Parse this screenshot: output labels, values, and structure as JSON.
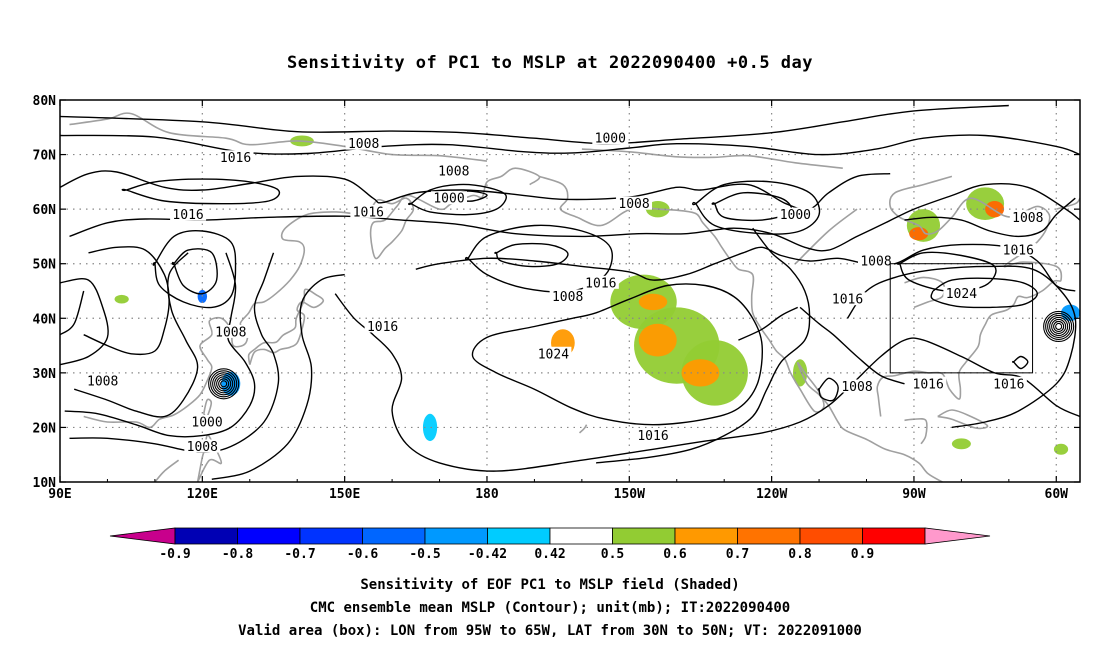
{
  "title": "Sensitivity of PC1 to MSLP at 2022090400 +0.5 day",
  "map": {
    "lon_range": [
      90,
      305
    ],
    "lat_range": [
      10,
      80
    ],
    "lat_ticks": [
      "10N",
      "20N",
      "30N",
      "40N",
      "50N",
      "60N",
      "70N",
      "80N"
    ],
    "lon_ticks": [
      "90E",
      "120E",
      "150E",
      "180",
      "150W",
      "120W",
      "90W",
      "60W"
    ],
    "grid": "dotted",
    "valid_box": {
      "lon": [
        265,
        295
      ],
      "lat": [
        30,
        50
      ]
    },
    "contour_labels": [
      {
        "text": "1016",
        "lon": 127,
        "lat": 69.5
      },
      {
        "text": "1008",
        "lon": 154,
        "lat": 72
      },
      {
        "text": "1000",
        "lon": 206,
        "lat": 73
      },
      {
        "text": "1008",
        "lon": 173,
        "lat": 67
      },
      {
        "text": "1000",
        "lon": 172,
        "lat": 62
      },
      {
        "text": "1016",
        "lon": 155,
        "lat": 59.5
      },
      {
        "text": "1008",
        "lon": 211,
        "lat": 61
      },
      {
        "text": "1000",
        "lon": 245,
        "lat": 59
      },
      {
        "text": "1016",
        "lon": 117,
        "lat": 59
      },
      {
        "text": "1008",
        "lon": 262,
        "lat": 50.5
      },
      {
        "text": "1016",
        "lon": 292,
        "lat": 52.5
      },
      {
        "text": "1008",
        "lon": 294,
        "lat": 58.5
      },
      {
        "text": "1016",
        "lon": 204,
        "lat": 46.5
      },
      {
        "text": "1008",
        "lon": 197,
        "lat": 44
      },
      {
        "text": "1016",
        "lon": 256,
        "lat": 43.5
      },
      {
        "text": "1024",
        "lon": 280,
        "lat": 44.5
      },
      {
        "text": "1008",
        "lon": 126,
        "lat": 37.5
      },
      {
        "text": "1016",
        "lon": 158,
        "lat": 38.5
      },
      {
        "text": "1024",
        "lon": 194,
        "lat": 33.5
      },
      {
        "text": "1008",
        "lon": 99,
        "lat": 28.5
      },
      {
        "text": "1000",
        "lon": 121,
        "lat": 21
      },
      {
        "text": "1008",
        "lon": 120,
        "lat": 16.5
      },
      {
        "text": "1016",
        "lon": 215,
        "lat": 18.5
      },
      {
        "text": "1008",
        "lon": 258,
        "lat": 27.5
      },
      {
        "text": "1016",
        "lon": 273,
        "lat": 28
      },
      {
        "text": "1016",
        "lon": 290,
        "lat": 28
      }
    ],
    "shaded_regions": [
      {
        "lon": 213,
        "lat": 43,
        "rx": 7,
        "ry": 5,
        "color": "#92cc33"
      },
      {
        "lon": 220,
        "lat": 35,
        "rx": 9,
        "ry": 7,
        "color": "#92cc33"
      },
      {
        "lon": 228,
        "lat": 30,
        "rx": 7,
        "ry": 6,
        "color": "#92cc33"
      },
      {
        "lon": 216,
        "lat": 36,
        "rx": 4,
        "ry": 3,
        "color": "#ff9900"
      },
      {
        "lon": 225,
        "lat": 30,
        "rx": 4,
        "ry": 2.5,
        "color": "#ff9900"
      },
      {
        "lon": 215,
        "lat": 43,
        "rx": 3,
        "ry": 1.5,
        "color": "#ff9900"
      },
      {
        "lon": 196,
        "lat": 35.5,
        "rx": 2.5,
        "ry": 2.5,
        "color": "#ff9900"
      },
      {
        "lon": 216,
        "lat": 60,
        "rx": 2.5,
        "ry": 1.5,
        "color": "#92cc33"
      },
      {
        "lon": 272,
        "lat": 57,
        "rx": 3.5,
        "ry": 3,
        "color": "#92cc33"
      },
      {
        "lon": 271,
        "lat": 55.5,
        "rx": 2,
        "ry": 1.2,
        "color": "#ff6600"
      },
      {
        "lon": 285,
        "lat": 61,
        "rx": 4,
        "ry": 3,
        "color": "#92cc33"
      },
      {
        "lon": 287,
        "lat": 60,
        "rx": 2,
        "ry": 1.5,
        "color": "#ff6600"
      },
      {
        "lon": 141,
        "lat": 72.5,
        "rx": 2.5,
        "ry": 1,
        "color": "#92cc33"
      },
      {
        "lon": 246,
        "lat": 30,
        "rx": 1.5,
        "ry": 2.5,
        "color": "#92cc33"
      },
      {
        "lon": 280,
        "lat": 17,
        "rx": 2,
        "ry": 1,
        "color": "#92cc33"
      },
      {
        "lon": 301,
        "lat": 16,
        "rx": 1.5,
        "ry": 1,
        "color": "#92cc33"
      },
      {
        "lon": 126,
        "lat": 28,
        "rx": 2,
        "ry": 2.2,
        "color": "#0099ff"
      },
      {
        "lon": 120,
        "lat": 44,
        "rx": 1,
        "ry": 1.2,
        "color": "#0066ff"
      },
      {
        "lon": 168,
        "lat": 20,
        "rx": 1.5,
        "ry": 2.5,
        "color": "#00ccff"
      },
      {
        "lon": 303,
        "lat": 41,
        "rx": 2,
        "ry": 1.5,
        "color": "#0099ff"
      },
      {
        "lon": 103,
        "lat": 43.5,
        "rx": 1.5,
        "ry": 0.8,
        "color": "#92cc33"
      }
    ],
    "lows": [
      {
        "lon": 124.5,
        "lat": 28
      },
      {
        "lon": 300.5,
        "lat": 38.5
      }
    ]
  },
  "colorbar": {
    "labels": [
      "-0.9",
      "-0.8",
      "-0.7",
      "-0.6",
      "-0.5",
      "-0.42",
      "0.42",
      "0.5",
      "0.6",
      "0.7",
      "0.8",
      "0.9"
    ],
    "colors": [
      "#c8008c",
      "#0000b4",
      "#0000ff",
      "#0033ff",
      "#0066ff",
      "#0099ff",
      "#00ccff",
      "#ffffff",
      "#92cc33",
      "#ff9900",
      "#ff7300",
      "#ff4d00",
      "#ff0000",
      "#ff99cc"
    ]
  },
  "footer": {
    "line1": "Sensitivity of EOF PC1 to MSLP field (Shaded)",
    "line2": "CMC ensemble mean MSLP (Contour); unit(mb); IT:2022090400",
    "line3": "Valid area (box): LON from 95W to 65W, LAT from 30N to 50N; VT: 2022091000"
  }
}
